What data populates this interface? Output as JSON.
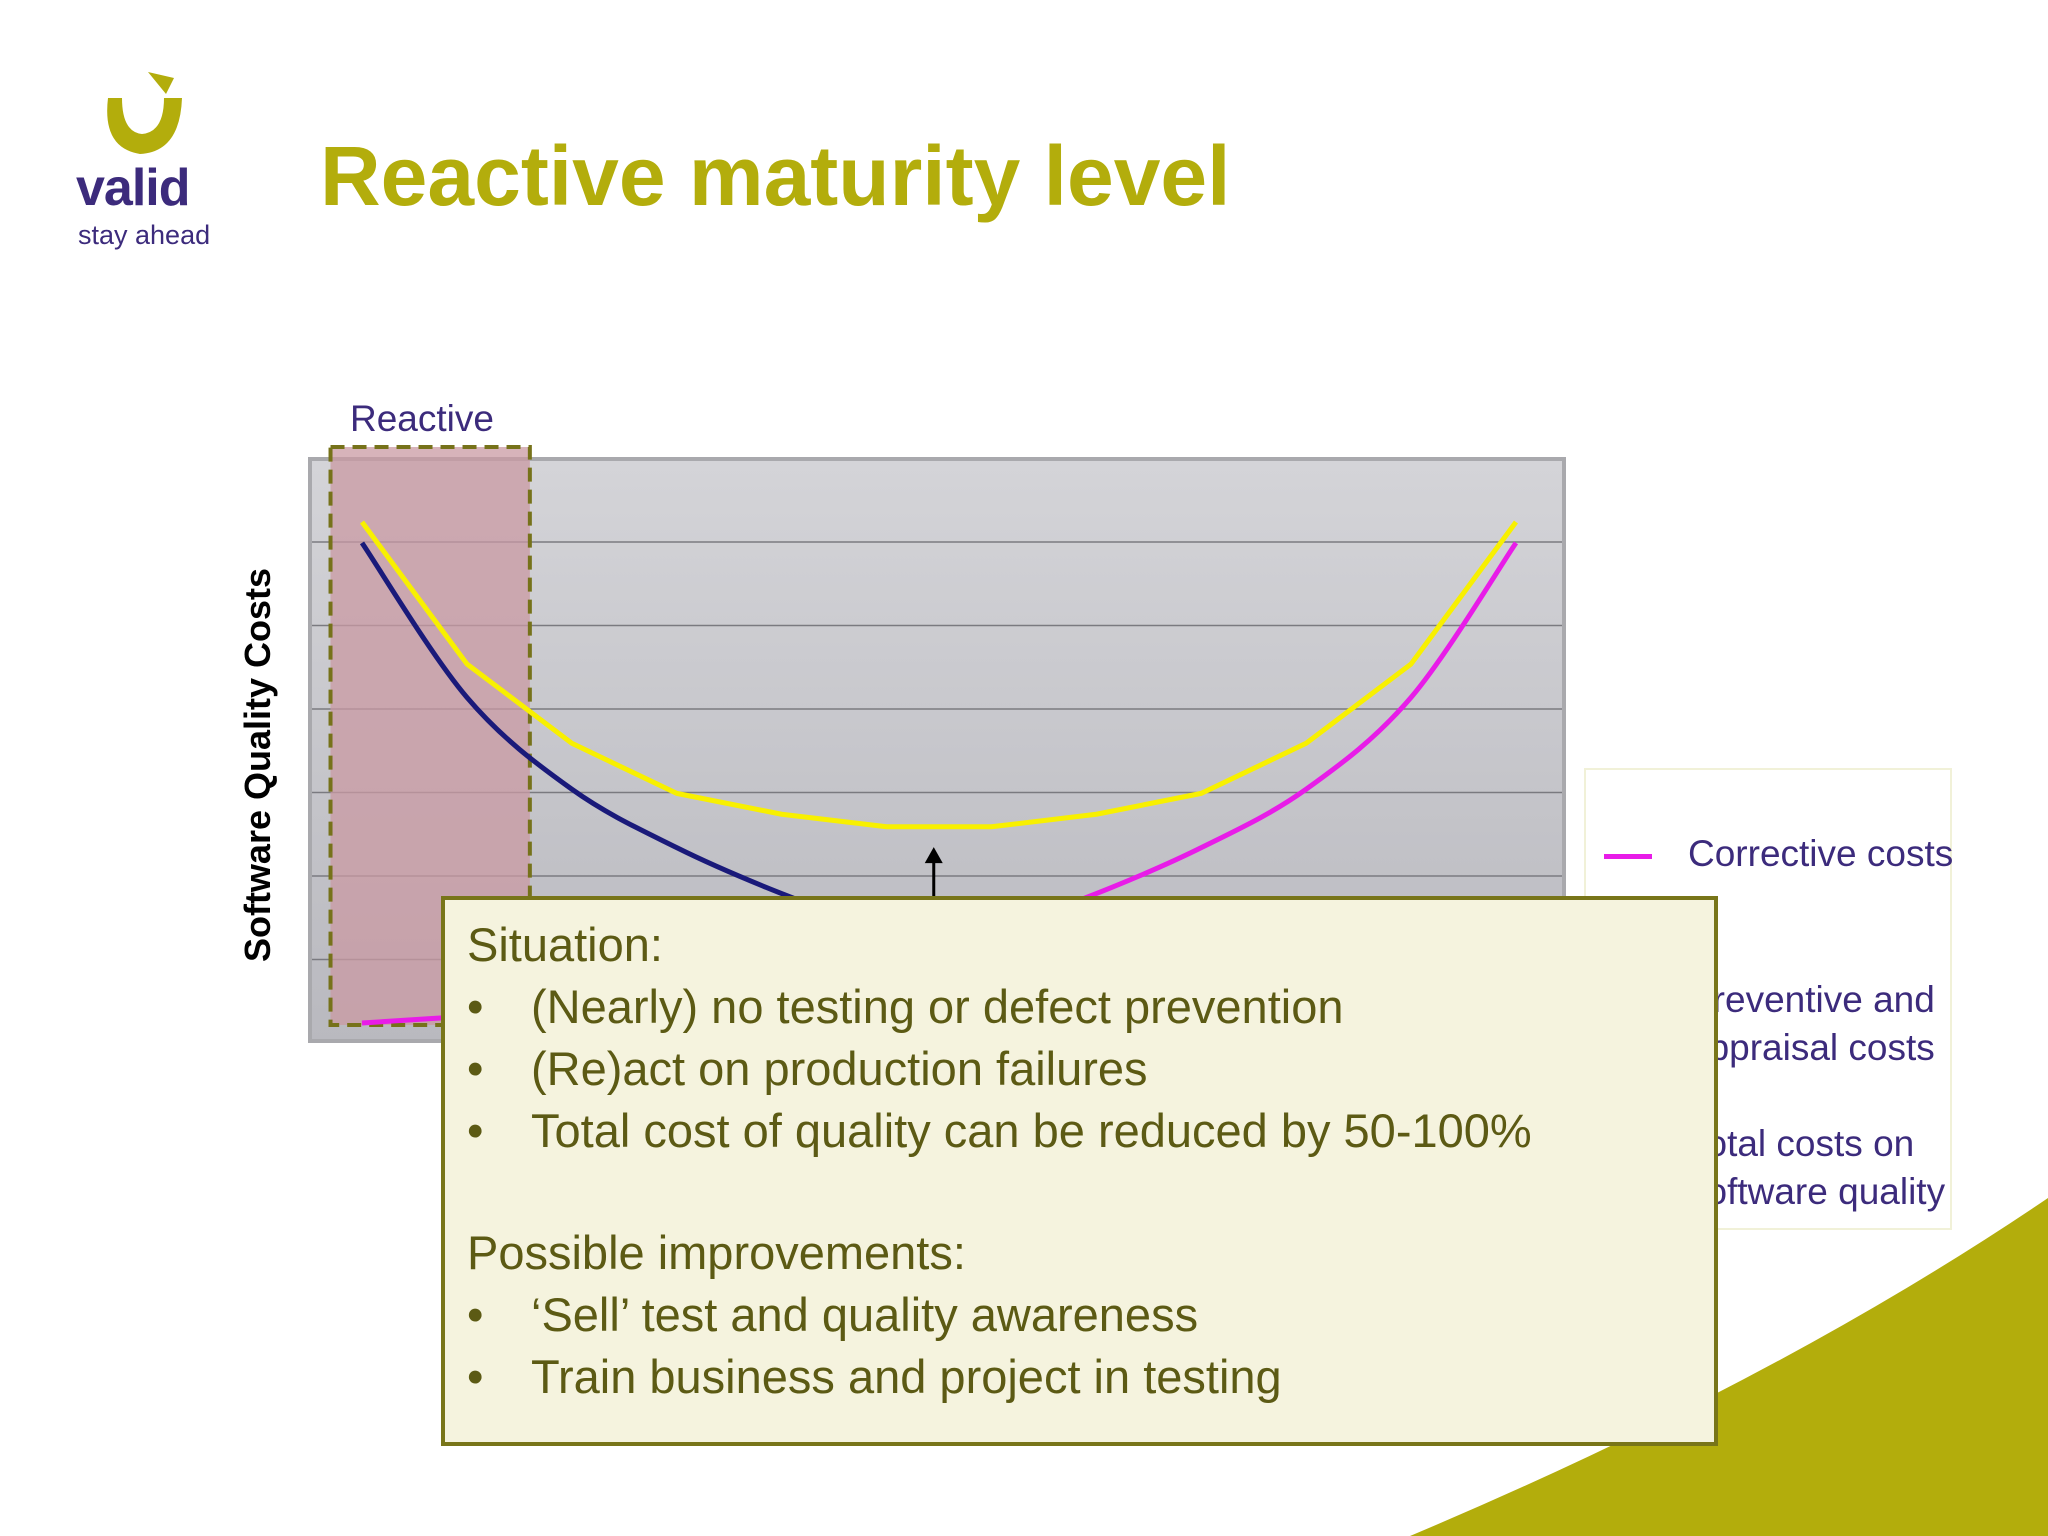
{
  "slide": {
    "title": "Reactive maturity level",
    "logo": {
      "word": "valid",
      "tagline": "stay ahead"
    }
  },
  "chart_data": {
    "type": "line",
    "ylabel": "Software Quality Costs",
    "xlabel": "",
    "xlim": [
      0,
      12
    ],
    "ylim": [
      0,
      6
    ],
    "grid": true,
    "legend_position": "right",
    "highlight_zone": {
      "label": "Reactive",
      "x_range": [
        -0.3,
        1.6
      ],
      "color": "#c99aa3",
      "border": "#76721a"
    },
    "series": [
      {
        "name": "Corrective costs",
        "color": "#e81ce8",
        "x": [
          0,
          1,
          2,
          3,
          4,
          5,
          6,
          7,
          8,
          9,
          10,
          11
        ],
        "y": [
          0,
          0.08,
          0.16,
          0.3,
          0.5,
          0.75,
          1.1,
          1.55,
          2.1,
          2.8,
          3.9,
          5.75
        ]
      },
      {
        "name": "Preventive and appraisal costs",
        "color": "#1a1a7a",
        "x": [
          0,
          1,
          2,
          3,
          4,
          5,
          6,
          7,
          8,
          9,
          10,
          11
        ],
        "y": [
          5.75,
          3.9,
          2.8,
          2.1,
          1.55,
          1.1,
          0.75,
          0.5,
          0.3,
          0.16,
          0.08,
          0
        ]
      },
      {
        "name": "Total costs on software quality",
        "color": "#f8f000",
        "x": [
          0,
          1,
          2,
          3,
          4,
          5,
          6,
          7,
          8,
          9,
          10,
          11
        ],
        "y": [
          6.0,
          4.3,
          3.35,
          2.75,
          2.5,
          2.35,
          2.35,
          2.5,
          2.75,
          3.35,
          4.3,
          6.0
        ]
      }
    ],
    "annotation_arrow": {
      "x": 5.45,
      "y_from": 1.35,
      "y_to": 2.25
    }
  },
  "callout": {
    "situation_heading": "Situation:",
    "situation_items": [
      "(Nearly) no testing or defect prevention",
      "(Re)act on production failures",
      "Total cost of quality can be reduced by 50-100%"
    ],
    "improvements_heading": "Possible improvements:",
    "improvement_items": [
      "‘Sell’ test and quality awareness",
      "Train business and project in testing"
    ]
  },
  "legend": {
    "items": [
      {
        "label": "Corrective costs",
        "color": "#e81ce8"
      },
      {
        "label": "Preventive and appraisal costs",
        "color": "#1a1a7a"
      },
      {
        "label": "Total costs on software quality",
        "color": "#f8f000"
      }
    ]
  },
  "colors": {
    "title": "#b3ad0c",
    "brand": "#3c2b7c",
    "accent": "#b3ad0c"
  }
}
